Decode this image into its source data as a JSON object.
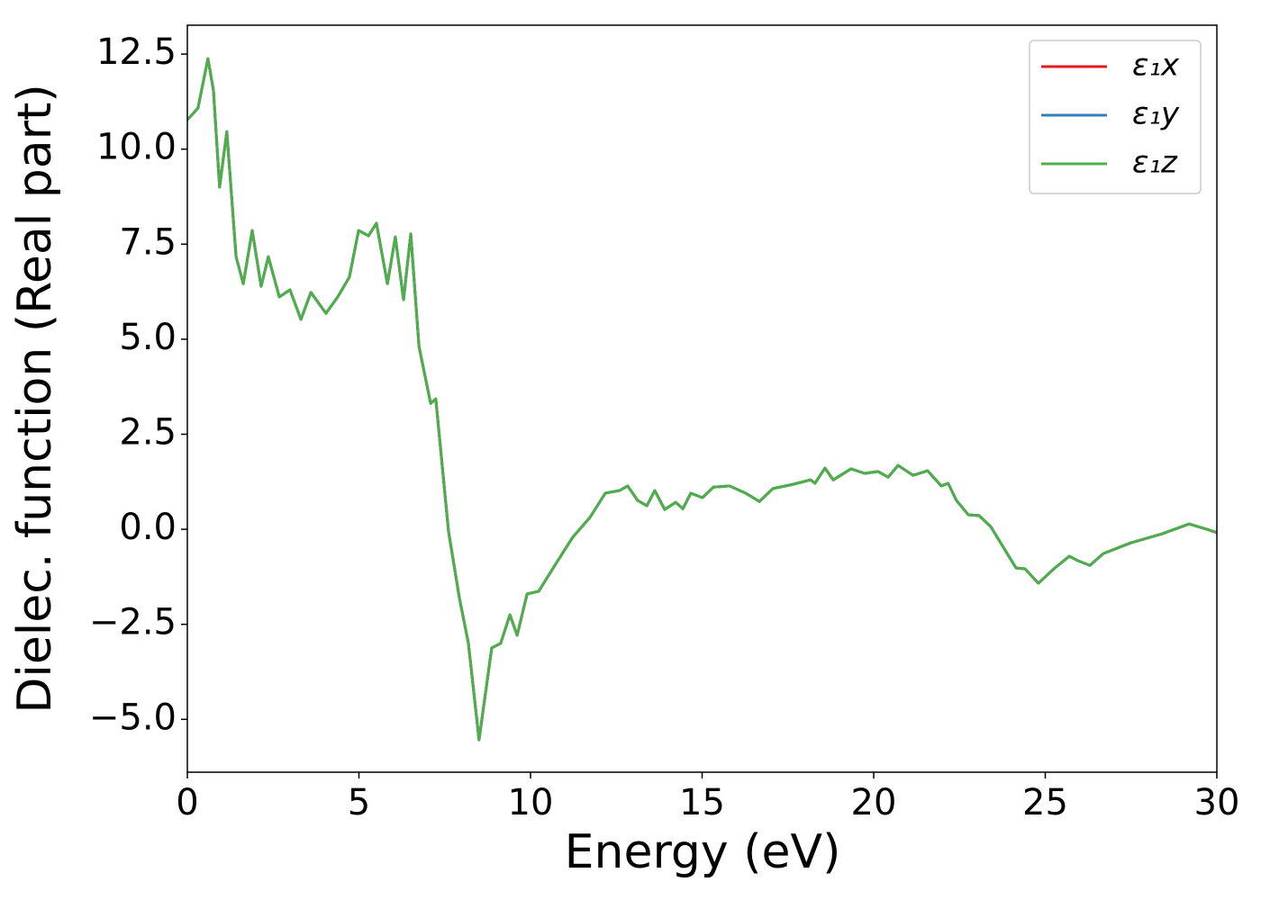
{
  "chart_data": {
    "type": "line",
    "xlabel": "Energy (eV)",
    "ylabel": "Dielec. function (Real part)",
    "xlim": [
      0,
      30
    ],
    "ylim": [
      -6.39,
      13.26
    ],
    "xticks": [
      0,
      5,
      10,
      15,
      20,
      25,
      30
    ],
    "yticks": [
      {
        "value": -5,
        "label": "−5.0"
      },
      {
        "value": -2.5,
        "label": "−2.5"
      },
      {
        "value": 0,
        "label": "0.0"
      },
      2.5,
      {
        "value": 5,
        "label": "5.0"
      },
      7.5,
      {
        "value": 10,
        "label": "10.0"
      },
      12.5
    ],
    "legend": "upper right",
    "x": [
      0,
      0.31,
      0.6,
      0.76,
      0.94,
      1.15,
      1.42,
      1.63,
      1.89,
      2.15,
      2.36,
      2.68,
      2.99,
      3.31,
      3.6,
      4.04,
      4.38,
      4.72,
      4.99,
      5.28,
      5.51,
      5.83,
      6.06,
      6.3,
      6.51,
      6.75,
      7.09,
      7.24,
      7.61,
      7.93,
      8.19,
      8.5,
      8.87,
      9.13,
      9.4,
      9.61,
      9.9,
      10.24,
      10.68,
      11.23,
      11.73,
      12.18,
      12.6,
      12.83,
      13.12,
      13.39,
      13.62,
      13.91,
      14.23,
      14.44,
      14.67,
      15.01,
      15.33,
      15.8,
      16.27,
      16.67,
      17.06,
      17.64,
      18.16,
      18.29,
      18.58,
      18.82,
      19.34,
      19.74,
      20.13,
      20.42,
      20.71,
      21.15,
      21.57,
      21.97,
      22.17,
      22.41,
      22.76,
      23.07,
      23.41,
      23.81,
      24.15,
      24.41,
      24.8,
      25.25,
      25.7,
      25.96,
      26.3,
      26.69,
      27.48,
      28.4,
      29.19,
      29.71,
      30
    ],
    "series": [
      {
        "name": "ε₁x",
        "color": "#e41a1c",
        "values": [
          10.77,
          11.08,
          12.38,
          11.55,
          9.0,
          10.46,
          7.17,
          6.46,
          7.86,
          6.39,
          7.17,
          6.11,
          6.3,
          5.52,
          6.23,
          5.68,
          6.11,
          6.63,
          7.86,
          7.72,
          8.05,
          6.46,
          7.69,
          6.04,
          7.77,
          4.81,
          3.31,
          3.43,
          -0.05,
          -1.82,
          -3.0,
          -5.54,
          -3.12,
          -3.0,
          -2.25,
          -2.79,
          -1.7,
          -1.63,
          -0.99,
          -0.21,
          0.31,
          0.95,
          1.02,
          1.14,
          0.76,
          0.62,
          1.02,
          0.52,
          0.71,
          0.54,
          0.95,
          0.83,
          1.11,
          1.14,
          0.95,
          0.73,
          1.07,
          1.18,
          1.3,
          1.21,
          1.61,
          1.3,
          1.59,
          1.47,
          1.52,
          1.37,
          1.68,
          1.42,
          1.54,
          1.14,
          1.21,
          0.76,
          0.38,
          0.36,
          0.07,
          -0.52,
          -1.02,
          -1.04,
          -1.42,
          -1.04,
          -0.71,
          -0.83,
          -0.95,
          -0.64,
          -0.36,
          -0.12,
          0.14,
          0,
          -0.09
        ]
      },
      {
        "name": "ε₁y",
        "color": "#377eb8",
        "values": [
          10.77,
          11.08,
          12.38,
          11.55,
          9.0,
          10.46,
          7.17,
          6.46,
          7.86,
          6.39,
          7.17,
          6.11,
          6.3,
          5.52,
          6.23,
          5.68,
          6.11,
          6.63,
          7.86,
          7.72,
          8.05,
          6.46,
          7.69,
          6.04,
          7.77,
          4.81,
          3.31,
          3.43,
          -0.05,
          -1.82,
          -3.0,
          -5.54,
          -3.12,
          -3.0,
          -2.25,
          -2.79,
          -1.7,
          -1.63,
          -0.99,
          -0.21,
          0.31,
          0.95,
          1.02,
          1.14,
          0.76,
          0.62,
          1.02,
          0.52,
          0.71,
          0.54,
          0.95,
          0.83,
          1.11,
          1.14,
          0.95,
          0.73,
          1.07,
          1.18,
          1.3,
          1.21,
          1.61,
          1.3,
          1.59,
          1.47,
          1.52,
          1.37,
          1.68,
          1.42,
          1.54,
          1.14,
          1.21,
          0.76,
          0.38,
          0.36,
          0.07,
          -0.52,
          -1.02,
          -1.04,
          -1.42,
          -1.04,
          -0.71,
          -0.83,
          -0.95,
          -0.64,
          -0.36,
          -0.12,
          0.14,
          0,
          -0.09
        ]
      },
      {
        "name": "ε₁z",
        "color": "#4daf4a",
        "values": [
          10.77,
          11.08,
          12.38,
          11.55,
          9.0,
          10.46,
          7.17,
          6.46,
          7.86,
          6.39,
          7.17,
          6.11,
          6.3,
          5.52,
          6.23,
          5.68,
          6.11,
          6.63,
          7.86,
          7.72,
          8.05,
          6.46,
          7.69,
          6.04,
          7.77,
          4.81,
          3.31,
          3.43,
          -0.05,
          -1.82,
          -3.0,
          -5.54,
          -3.12,
          -3.0,
          -2.25,
          -2.79,
          -1.7,
          -1.63,
          -0.99,
          -0.21,
          0.31,
          0.95,
          1.02,
          1.14,
          0.76,
          0.62,
          1.02,
          0.52,
          0.71,
          0.54,
          0.95,
          0.83,
          1.11,
          1.14,
          0.95,
          0.73,
          1.07,
          1.18,
          1.3,
          1.21,
          1.61,
          1.3,
          1.59,
          1.47,
          1.52,
          1.37,
          1.68,
          1.42,
          1.54,
          1.14,
          1.21,
          0.76,
          0.38,
          0.36,
          0.07,
          -0.52,
          -1.02,
          -1.04,
          -1.42,
          -1.04,
          -0.71,
          -0.83,
          -0.95,
          -0.64,
          -0.36,
          -0.12,
          0.14,
          0,
          -0.09
        ]
      }
    ]
  }
}
